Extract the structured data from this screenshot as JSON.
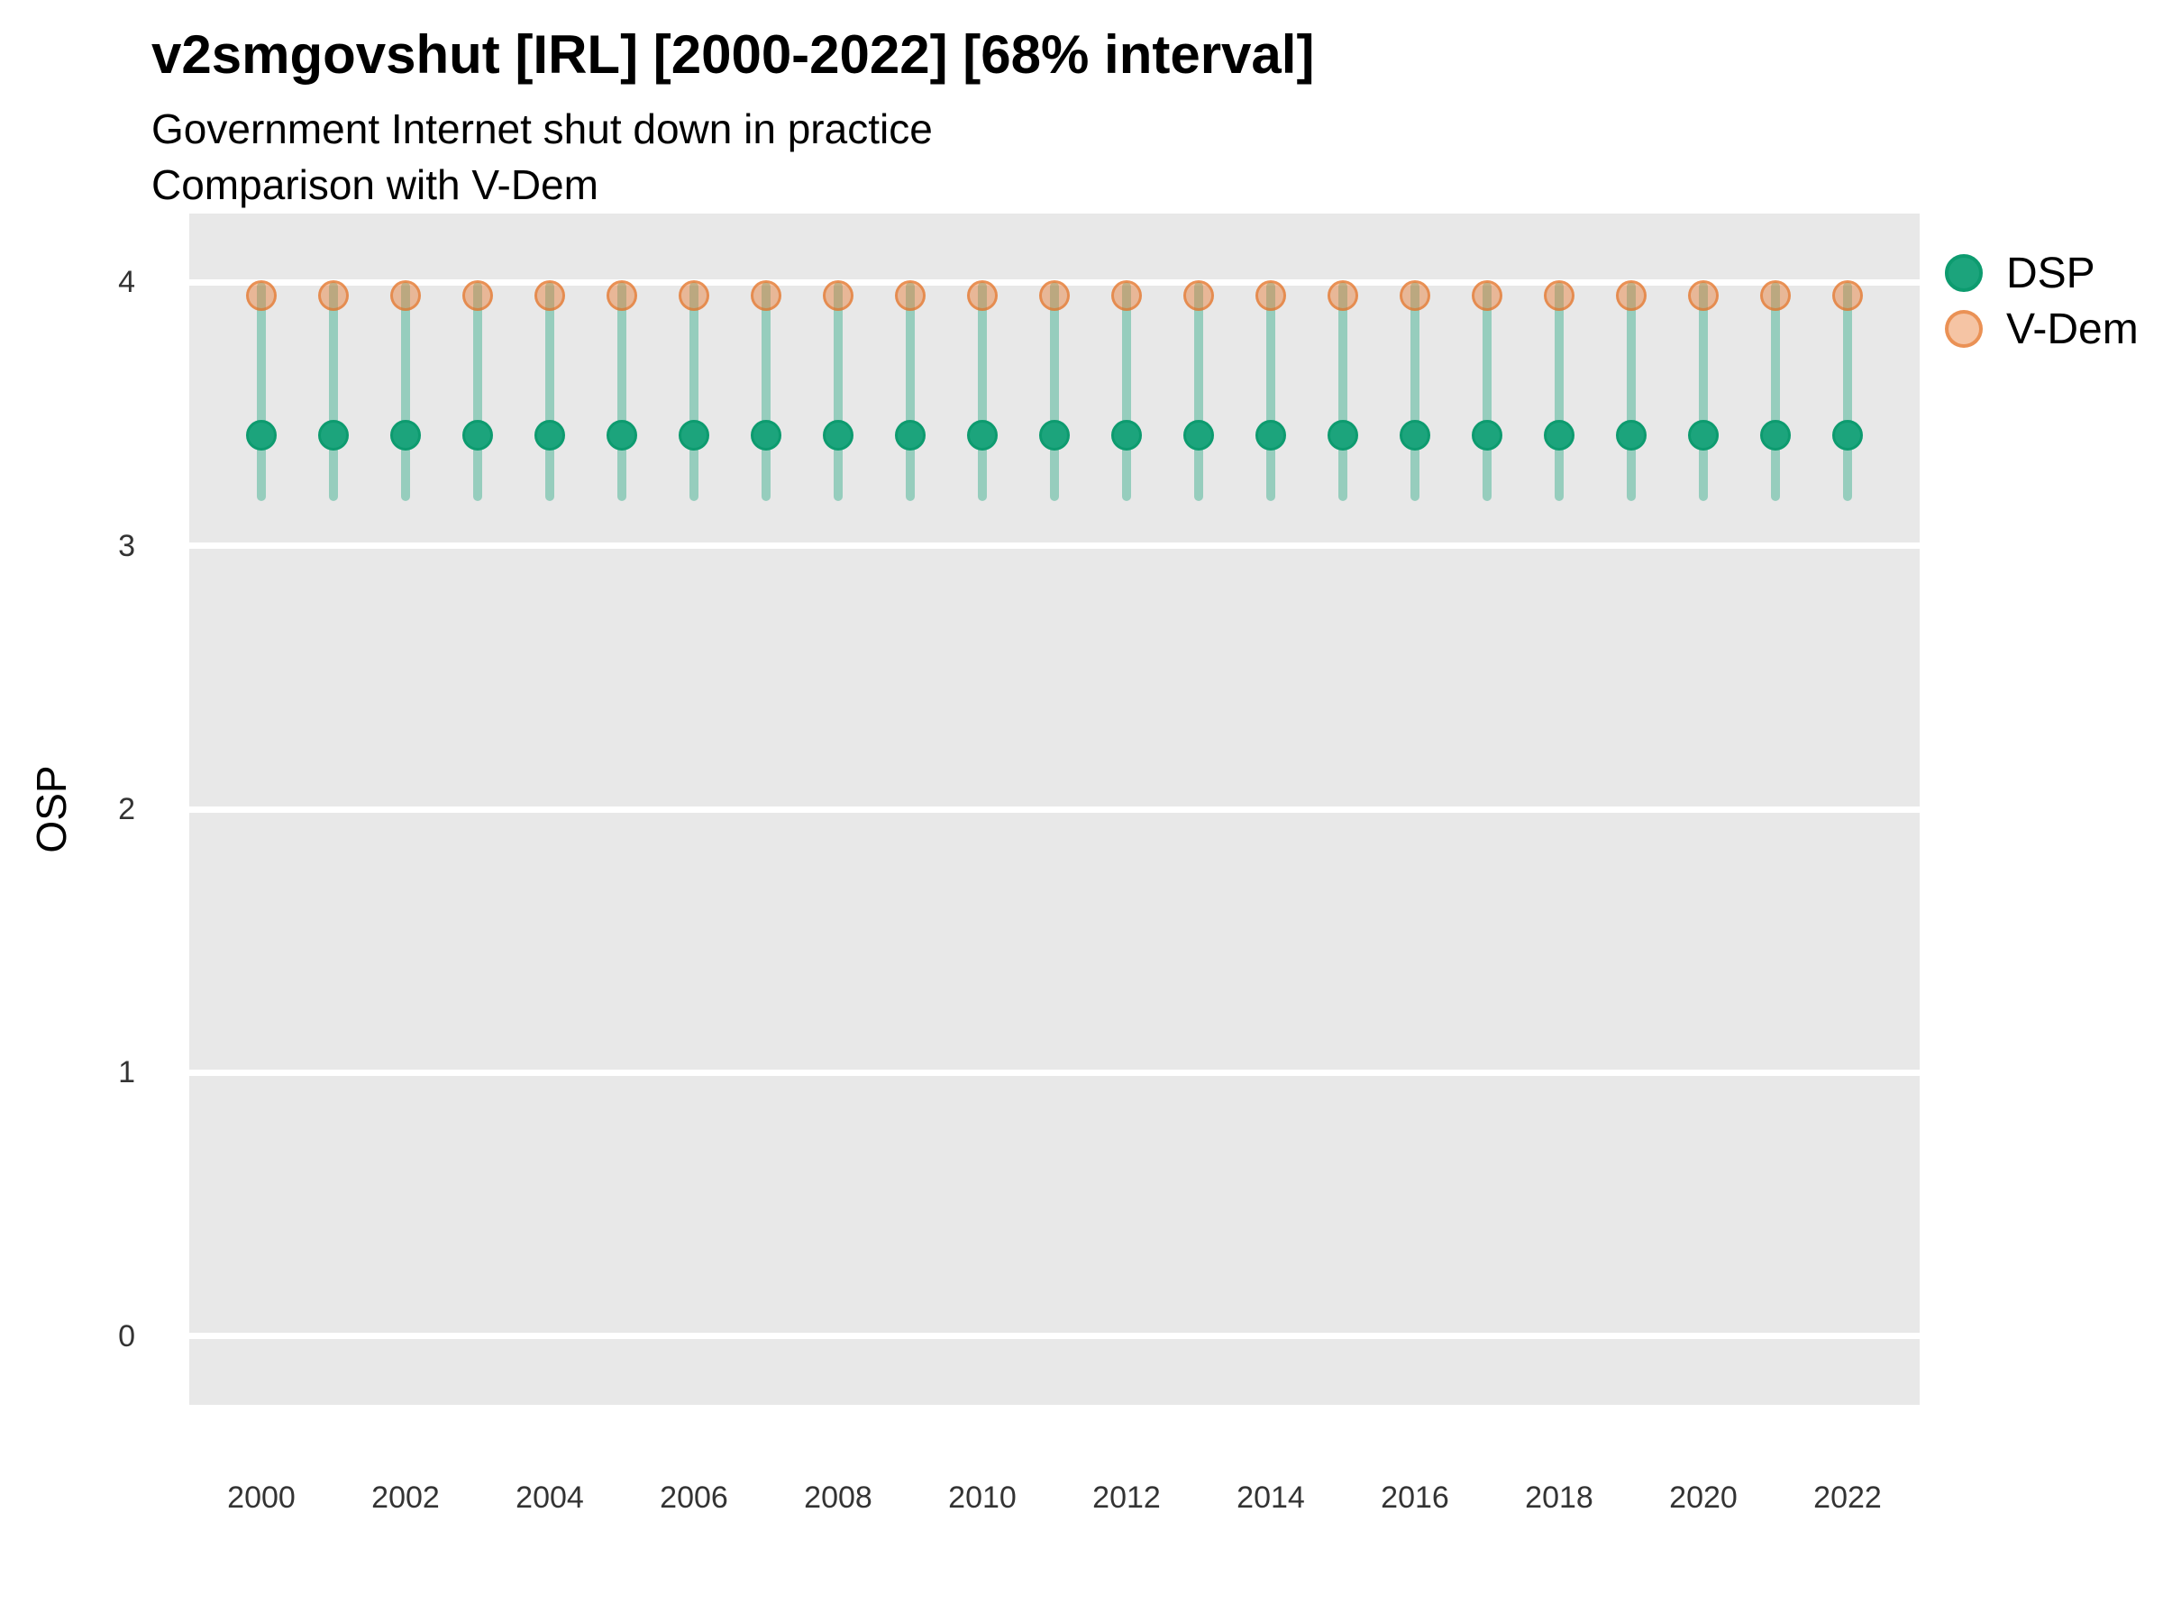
{
  "header": {
    "title": "v2smgovshut [IRL] [2000-2022] [68% interval]",
    "subtitle1": "Government Internet shut down in practice",
    "subtitle2": "Comparison with V-Dem"
  },
  "legend": {
    "position": "right",
    "dsp": {
      "label": "DSP"
    },
    "vdem": {
      "label": "V-Dem"
    }
  },
  "colors": {
    "panel_background": "#E8E8E8",
    "gridline": "#FFFFFF",
    "dsp_fill": "#1CA47C",
    "dsp_border": "#0D9B6F",
    "dsp_interval_bar": "rgba(28,164,124,0.40)",
    "vdem_fill": "rgba(232,125,53,0.45)",
    "vdem_border": "rgba(226,112,34,0.60)",
    "tick_text": "#333333"
  },
  "chart_data": {
    "type": "scatter",
    "title": "v2smgovshut [IRL] [2000-2022] [68% interval]",
    "subtitle": "Government Internet shut down in practice",
    "subtitle2": "Comparison with V-Dem",
    "xlabel": "",
    "ylabel": "OSP",
    "x": [
      2000,
      2001,
      2002,
      2003,
      2004,
      2005,
      2006,
      2007,
      2008,
      2009,
      2010,
      2011,
      2012,
      2013,
      2014,
      2015,
      2016,
      2017,
      2018,
      2019,
      2020,
      2021,
      2022
    ],
    "series": [
      {
        "name": "DSP",
        "values": [
          3.42,
          3.42,
          3.42,
          3.42,
          3.42,
          3.42,
          3.42,
          3.42,
          3.42,
          3.42,
          3.42,
          3.42,
          3.42,
          3.42,
          3.42,
          3.42,
          3.42,
          3.42,
          3.42,
          3.42,
          3.42,
          3.42,
          3.42
        ],
        "lower": [
          3.17,
          3.17,
          3.17,
          3.17,
          3.17,
          3.17,
          3.17,
          3.17,
          3.17,
          3.17,
          3.17,
          3.17,
          3.17,
          3.17,
          3.17,
          3.17,
          3.17,
          3.17,
          3.17,
          3.17,
          3.17,
          3.17,
          3.17
        ],
        "upper": [
          4.0,
          4.0,
          4.0,
          4.0,
          4.0,
          4.0,
          4.0,
          4.0,
          4.0,
          4.0,
          4.0,
          4.0,
          4.0,
          4.0,
          4.0,
          4.0,
          4.0,
          4.0,
          4.0,
          4.0,
          4.0,
          4.0,
          4.0
        ],
        "interval": "68%"
      },
      {
        "name": "V-Dem",
        "values": [
          3.95,
          3.95,
          3.95,
          3.95,
          3.95,
          3.95,
          3.95,
          3.95,
          3.95,
          3.95,
          3.95,
          3.95,
          3.95,
          3.95,
          3.95,
          3.95,
          3.95,
          3.95,
          3.95,
          3.95,
          3.95,
          3.95,
          3.95
        ]
      }
    ],
    "xticks": [
      2000,
      2002,
      2004,
      2006,
      2008,
      2010,
      2012,
      2014,
      2016,
      2018,
      2020,
      2022
    ],
    "yticks": [
      0,
      1,
      2,
      3,
      4
    ],
    "xlim": [
      1999,
      2023
    ],
    "ylim": [
      -0.26,
      4.26
    ],
    "grid": "major-horizontal-only",
    "legend_position": "right"
  }
}
